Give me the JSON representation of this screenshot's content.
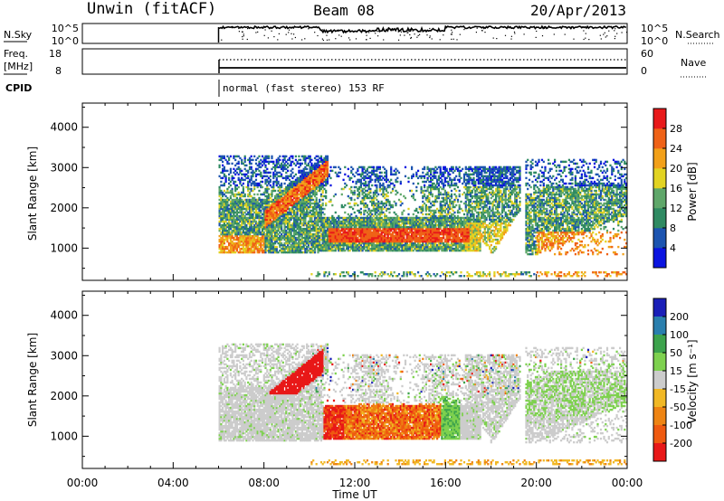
{
  "header": {
    "station": "Unwin (fitACF)",
    "beam": "Beam 08",
    "date": "20/Apr/2013"
  },
  "panels": {
    "nsky": {
      "label": "N.Sky",
      "right_label": "N.Search",
      "left_ticks": [
        "10^5",
        "10^0"
      ],
      "right_ticks": [
        "10^5",
        "10^0"
      ]
    },
    "freq": {
      "label": "Freq.",
      "unit": "[MHz]",
      "right_label": "Nave",
      "left_ticks": [
        "18",
        "8"
      ],
      "right_ticks": [
        "60",
        "0"
      ]
    },
    "cpid": {
      "label": "CPID",
      "mode_text": "normal (fast stereo) 153 RF",
      "start_hour": 6
    }
  },
  "chart_data": [
    {
      "type": "heatmap",
      "name": "power",
      "ylabel": "Slant Range [km]",
      "xlabel": "",
      "ylim": [
        200,
        4600
      ],
      "y_ticks": [
        1000,
        2000,
        3000,
        4000
      ],
      "x_ticks": [
        "00:00",
        "04:00",
        "08:00",
        "12:00",
        "16:00",
        "20:00",
        "00:00"
      ],
      "xlim_hours": [
        0,
        24
      ],
      "data_start_hour": 6,
      "colorbar": {
        "label": "Power [dB]",
        "ticks": [
          "4",
          "8",
          "12",
          "16",
          "20",
          "24",
          "28"
        ],
        "colors": [
          "#0b14e0",
          "#1c54b0",
          "#2f8a62",
          "#5fa76a",
          "#e2d322",
          "#f2a019",
          "#ef6217",
          "#e8191a"
        ]
      }
    },
    {
      "type": "heatmap",
      "name": "velocity",
      "ylabel": "Slant Range [km]",
      "xlabel": "Time UT",
      "ylim": [
        200,
        4600
      ],
      "y_ticks": [
        1000,
        2000,
        3000,
        4000
      ],
      "x_ticks": [
        "00:00",
        "04:00",
        "08:00",
        "12:00",
        "16:00",
        "20:00",
        "00:00"
      ],
      "xlim_hours": [
        0,
        24
      ],
      "data_start_hour": 6,
      "colorbar": {
        "label": "Velocity [m s⁻¹]",
        "ticks": [
          "200",
          "100",
          "50",
          "15",
          "-15",
          "-50",
          "-100",
          "-200"
        ],
        "colors": [
          "#1a1fb8",
          "#2a7fae",
          "#3da34d",
          "#7ed14f",
          "#cccccc",
          "#f1b825",
          "#ee8413",
          "#ef5a10",
          "#e81818"
        ]
      }
    }
  ]
}
